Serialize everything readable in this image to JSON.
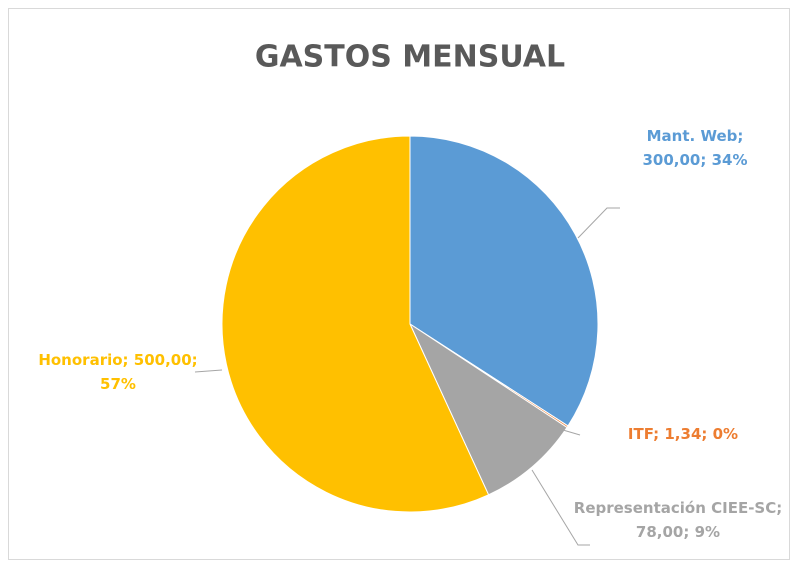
{
  "chart_data": {
    "type": "pie",
    "title": "GASTOS MENSUAL",
    "categories": [
      "Mant. Web",
      "ITF",
      "Representación CIEE-SC",
      "Honorario"
    ],
    "values": [
      300,
      1.34,
      78,
      500
    ],
    "value_labels": [
      "300,00",
      "1,34",
      "78,00",
      "500,00"
    ],
    "percentages": [
      34,
      0,
      9,
      57
    ],
    "percent_labels": [
      "34%",
      "0%",
      "9%",
      "57%"
    ],
    "label_separator": ";",
    "colors": [
      "#5b9bd5",
      "#ed7d31",
      "#a5a5a5",
      "#ffc000"
    ]
  }
}
